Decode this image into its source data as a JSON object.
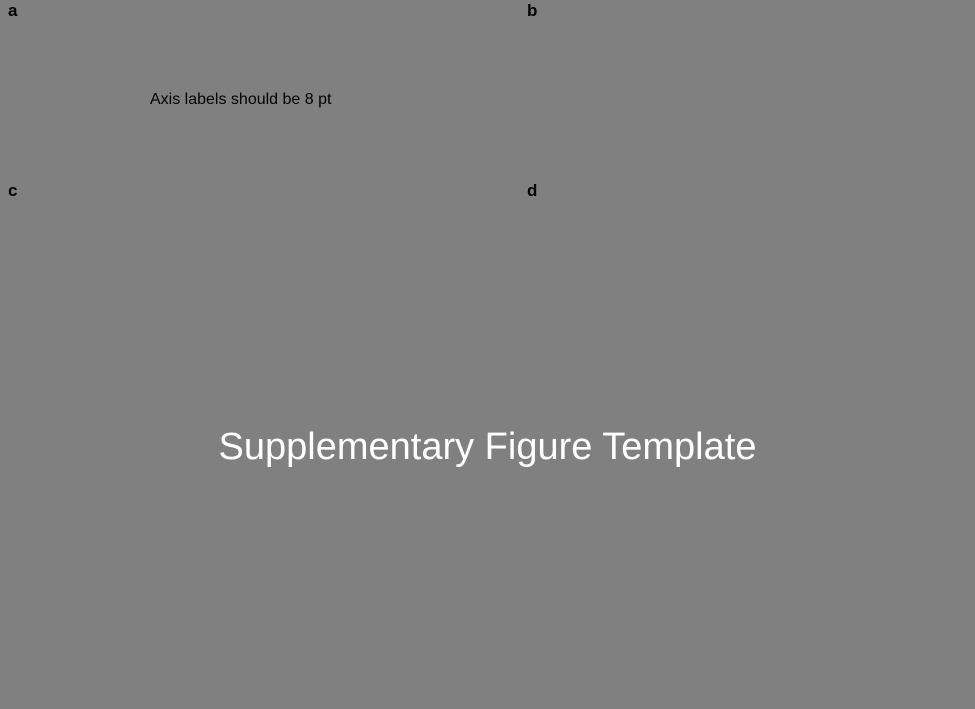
{
  "panels": {
    "a": "a",
    "b": "b",
    "c": "c",
    "d": "d"
  },
  "note": "Axis labels should be 8 pt",
  "title": "Supplementary Figure Template",
  "colors": {
    "background": "#808080",
    "label_text": "#000000",
    "title_text": "#ffffff"
  }
}
